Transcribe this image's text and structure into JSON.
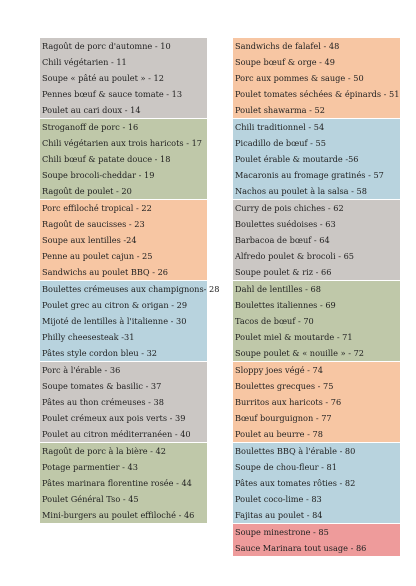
{
  "left_column": [
    {
      "color": "grey",
      "items": [
        "Ragoût de porc d'automne - 10",
        "Chili végétarien - 11",
        "Soupe « pâté au poulet » - 12",
        "Pennes bœuf & sauce tomate - 13",
        "Poulet au cari doux - 14"
      ]
    },
    {
      "color": "green",
      "items": [
        "Stroganoff de porc - 16",
        "Chili végétarien aux trois haricots - 17",
        "Chili bœuf & patate douce - 18",
        "Soupe brocoli-cheddar - 19",
        "Ragoût de poulet - 20"
      ]
    },
    {
      "color": "orange",
      "items": [
        "Porc effiloché tropical - 22",
        "Ragoût de saucisses - 23",
        "Soupe aux lentilles -24",
        "Penne au poulet cajun - 25",
        "Sandwichs au poulet BBQ - 26"
      ]
    },
    {
      "color": "blue",
      "items": [
        "Boulettes crémeuses aux champignons- 28",
        "Poulet grec au citron & origan - 29",
        "Mijoté de lentilles à l'italienne - 30",
        "Philly cheesesteak -31",
        "Pâtes style cordon bleu - 32"
      ]
    },
    {
      "color": "grey",
      "items": [
        "Porc à l'érable - 36",
        "Soupe tomates & basilic - 37",
        "Pâtes au thon crémeuses - 38",
        "Poulet crémeux aux pois verts - 39",
        "Poulet au citron méditerranéen - 40"
      ]
    },
    {
      "color": "green",
      "items": [
        "Ragoût de porc à la bière - 42",
        "Potage parmentier - 43",
        "Pâtes marinara florentine rosée - 44",
        "Poulet Général Tso - 45",
        "Mini-burgers au poulet effiloché - 46"
      ]
    }
  ],
  "right_column": [
    {
      "color": "orange",
      "items": [
        "Sandwichs de falafel - 48",
        "Soupe bœuf & orge - 49",
        "Porc aux pommes & sauge - 50",
        "Poulet tomates séchées & épinards - 51",
        "Poulet shawarma - 52"
      ]
    },
    {
      "color": "blue",
      "items": [
        "Chili traditionnel - 54",
        "Picadillo de bœuf - 55",
        "Poulet érable & moutarde -56",
        "Macaronis au fromage gratinés - 57",
        "Nachos au poulet à la salsa - 58"
      ]
    },
    {
      "color": "grey",
      "items": [
        "Curry de pois chiches - 62",
        "Boulettes suédoises - 63",
        "Barbacoa de bœuf - 64",
        "Alfredo poulet & brocoli - 65",
        "Soupe poulet & riz - 66"
      ]
    },
    {
      "color": "green",
      "items": [
        "Dahl de lentilles - 68",
        "Boulettes italiennes - 69",
        "Tacos de bœuf - 70",
        "Poulet miel & moutarde - 71",
        "Soupe poulet & « nouille » - 72"
      ]
    },
    {
      "color": "orange",
      "items": [
        "Sloppy joes végé - 74",
        "Boulettes grecques - 75",
        "Burritos aux haricots - 76",
        "Bœuf bourguignon - 77",
        "Poulet au beurre - 78"
      ]
    },
    {
      "color": "blue",
      "items": [
        "Boulettes BBQ à l'érable - 80",
        "Soupe de chou-fleur - 81",
        "Pâtes aux tomates rôties - 82",
        "Poulet coco-lime - 83",
        "Fajitas au poulet - 84"
      ]
    },
    {
      "color": "pink",
      "items": [
        "Soupe minestrone - 85",
        "Sauce Marinara tout usage - 86"
      ]
    }
  ]
}
